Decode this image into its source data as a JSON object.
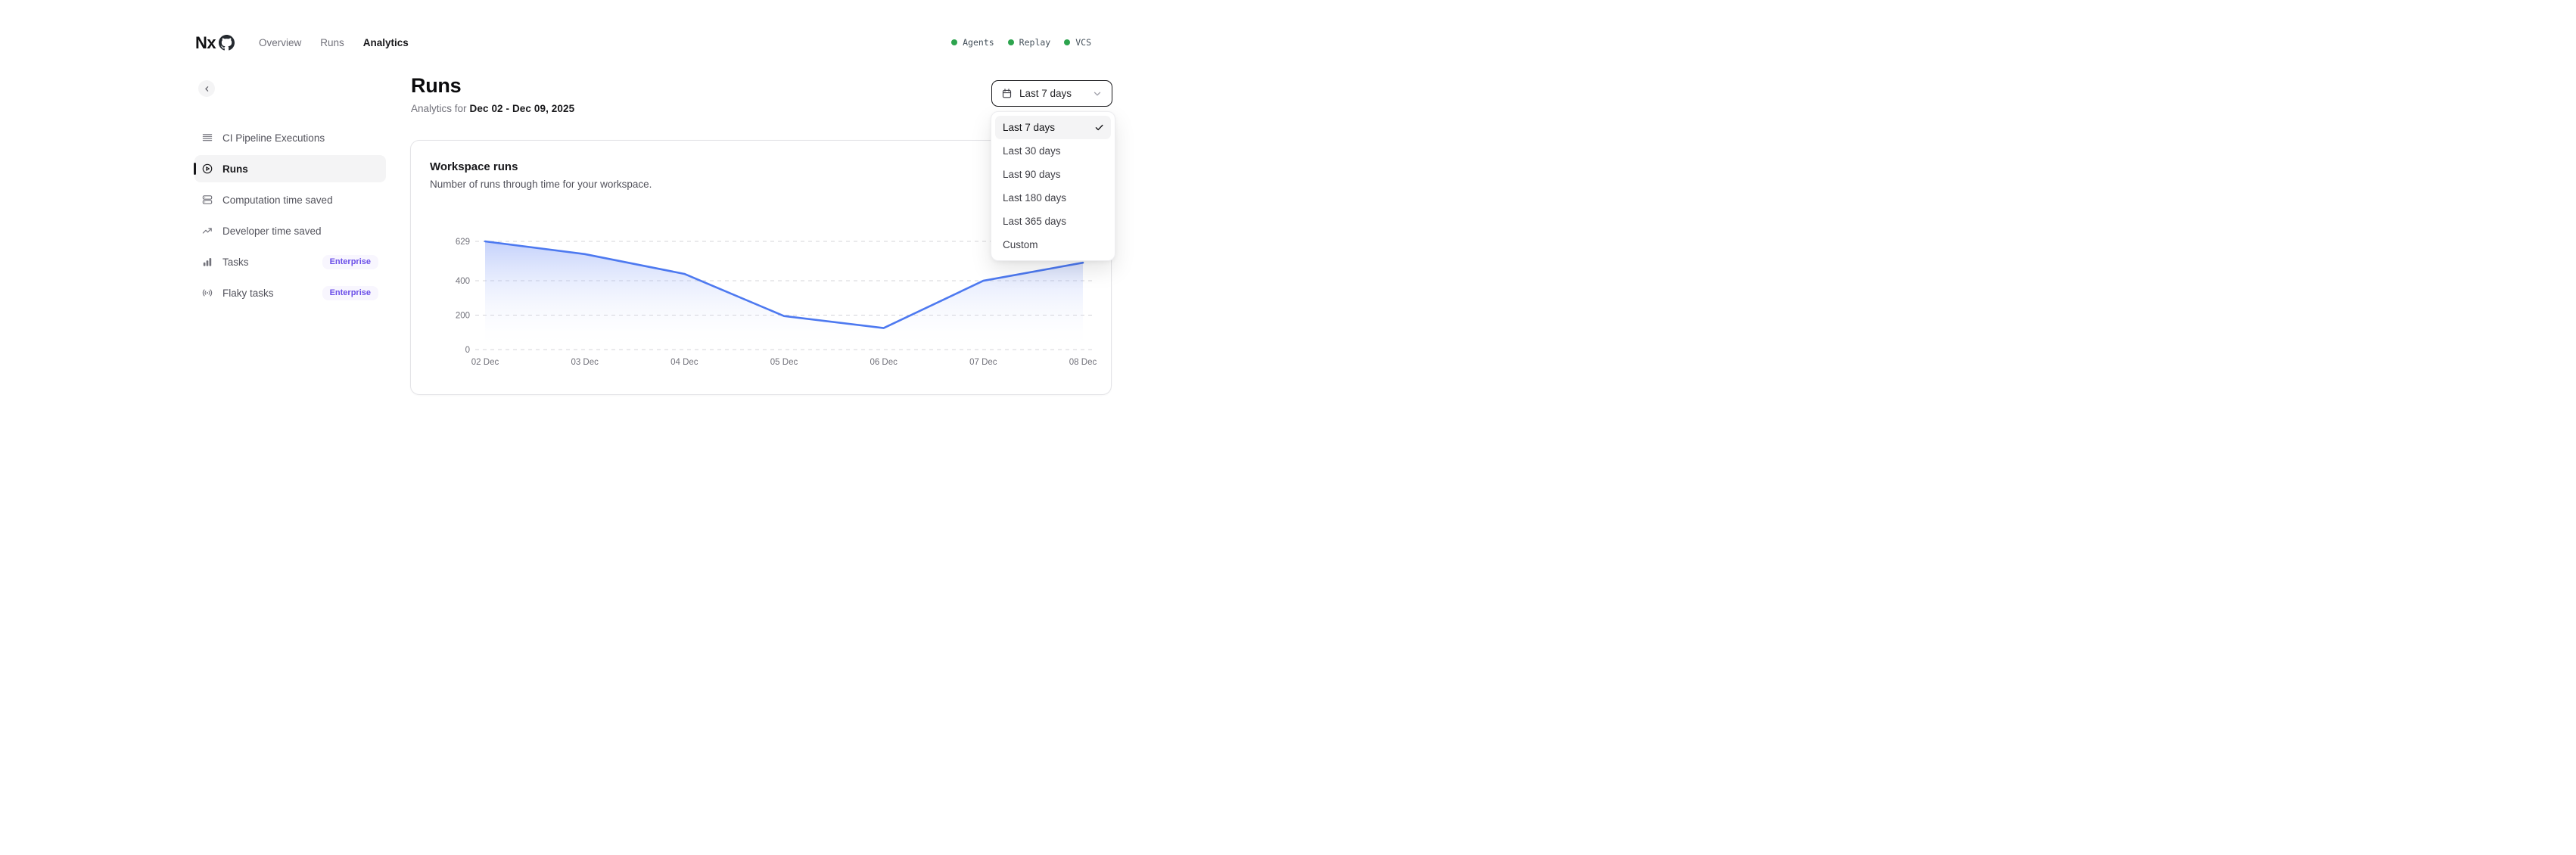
{
  "nav": {
    "logo": "Nx",
    "links": [
      {
        "label": "Overview",
        "active": false
      },
      {
        "label": "Runs",
        "active": false
      },
      {
        "label": "Analytics",
        "active": true
      }
    ],
    "status": [
      {
        "label": "Agents"
      },
      {
        "label": "Replay"
      },
      {
        "label": "VCS"
      }
    ],
    "status_dot_color": "#2da44e"
  },
  "sidebar": {
    "items": [
      {
        "label": "CI Pipeline Executions",
        "icon": "rows-icon",
        "active": false,
        "badge": null
      },
      {
        "label": "Runs",
        "icon": "play-circle-icon",
        "active": true,
        "badge": null
      },
      {
        "label": "Computation time saved",
        "icon": "server-icon",
        "active": false,
        "badge": null
      },
      {
        "label": "Developer time saved",
        "icon": "trend-up-icon",
        "active": false,
        "badge": null
      },
      {
        "label": "Tasks",
        "icon": "bar-chart-icon",
        "active": false,
        "badge": "Enterprise"
      },
      {
        "label": "Flaky tasks",
        "icon": "signal-icon",
        "active": false,
        "badge": "Enterprise"
      }
    ],
    "badge_color": "#6b4fe8"
  },
  "page": {
    "title": "Runs",
    "subtitle_prefix": "Analytics for",
    "date_range": "Dec 02 - Dec 09, 2025"
  },
  "date_filter": {
    "button_label": "Last 7 days",
    "button_icon": "calendar-icon",
    "options": [
      {
        "label": "Last 7 days",
        "selected": true
      },
      {
        "label": "Last 30 days",
        "selected": false
      },
      {
        "label": "Last 90 days",
        "selected": false
      },
      {
        "label": "Last 180 days",
        "selected": false
      },
      {
        "label": "Last 365 days",
        "selected": false
      },
      {
        "label": "Custom",
        "selected": false
      }
    ]
  },
  "card": {
    "title": "Workspace runs",
    "description": "Number of runs through time for your workspace."
  },
  "chart_data": {
    "type": "area",
    "title": "Workspace runs",
    "x": [
      "02 Dec",
      "03 Dec",
      "04 Dec",
      "05 Dec",
      "06 Dec",
      "07 Dec",
      "08 Dec"
    ],
    "series": [
      {
        "name": "Workspace runs",
        "values": [
          629,
          555,
          440,
          195,
          125,
          400,
          505
        ]
      }
    ],
    "yticks": [
      0,
      200,
      400,
      629
    ],
    "ylim": [
      0,
      629
    ],
    "grid": true,
    "grid_style": "dashed",
    "legend": false,
    "line_color": "#4d79f0",
    "fill_top": "rgba(109,141,245,0.40)",
    "fill_bottom": "rgba(255,255,255,0)",
    "axis_label_color": "#71717a",
    "grid_color": "#d4d4d8"
  }
}
